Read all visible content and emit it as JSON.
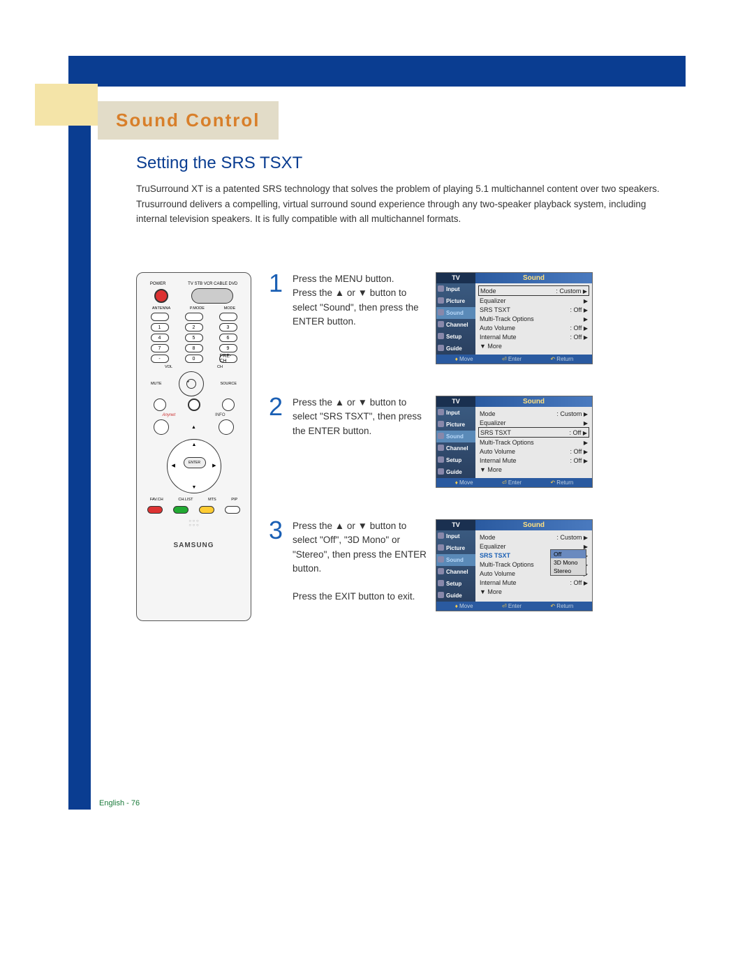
{
  "section_header": "Sound Control",
  "subtitle": "Setting the SRS TSXT",
  "intro": "TruSurround XT is a patented SRS technology that solves the problem of playing 5.1 multichannel content over two speakers. Trusurround delivers a compelling, virtual surround sound experience through any two-speaker playback system, including internal television speakers. It is fully compatible with all multichannel formats.",
  "remote": {
    "top_labels": [
      "POWER",
      "TV  STB  VCR  CABLE  DVD"
    ],
    "row2": [
      "ANTENNA",
      "P.MODE",
      "MODE"
    ],
    "numpad": [
      [
        "1",
        "2",
        "3"
      ],
      [
        "4",
        "5",
        "6"
      ],
      [
        "7",
        "8",
        "9"
      ],
      [
        "-",
        "0",
        "PRE-CH"
      ]
    ],
    "mid_labels": [
      "VOL",
      "CH",
      "MUTE",
      "SOURCE"
    ],
    "mid2": [
      "Anynet",
      "INFO"
    ],
    "dpad_center": "ENTER",
    "bottom_labels": [
      "FAV.CH",
      "CH.LIST",
      "MTS",
      "PIP"
    ],
    "brand": "SAMSUNG"
  },
  "steps": [
    {
      "num": "1",
      "text": "Press the MENU button.\nPress the ▲ or ▼ button to select \"Sound\", then press the ENTER button."
    },
    {
      "num": "2",
      "text": "Press the ▲ or ▼ button to select \"SRS TSXT\", then press the ENTER button."
    },
    {
      "num": "3",
      "text": "Press the ▲ or ▼ button to select \"Off\", \"3D Mono\" or \"Stereo\", then press the ENTER button.\n\nPress the EXIT button to exit."
    }
  ],
  "osd": {
    "tv_label": "TV",
    "title": "Sound",
    "sidebar": [
      "Input",
      "Picture",
      "Sound",
      "Channel",
      "Setup",
      "Guide"
    ],
    "items_full": [
      {
        "l": "Mode",
        "v": ": Custom",
        "a": "▶"
      },
      {
        "l": "Equalizer",
        "v": "",
        "a": "▶"
      },
      {
        "l": "SRS TSXT",
        "v": ": Off",
        "a": "▶"
      },
      {
        "l": "Multi-Track Options",
        "v": "",
        "a": "▶"
      },
      {
        "l": "Auto Volume",
        "v": ": Off",
        "a": "▶"
      },
      {
        "l": "Internal Mute",
        "v": ": Off",
        "a": "▶"
      },
      {
        "l": "▼ More",
        "v": "",
        "a": ""
      }
    ],
    "popup_options": [
      "Off",
      "3D Mono",
      "Stereo"
    ],
    "footer_move": "Move",
    "footer_enter": "Enter",
    "footer_return": "Return"
  },
  "page_footer": "English - 76",
  "colors": {
    "blue": "#0a3d91",
    "tab_bg": "#e2dcc8",
    "orange": "#d87f2a",
    "step_blue": "#1a5fb4"
  }
}
